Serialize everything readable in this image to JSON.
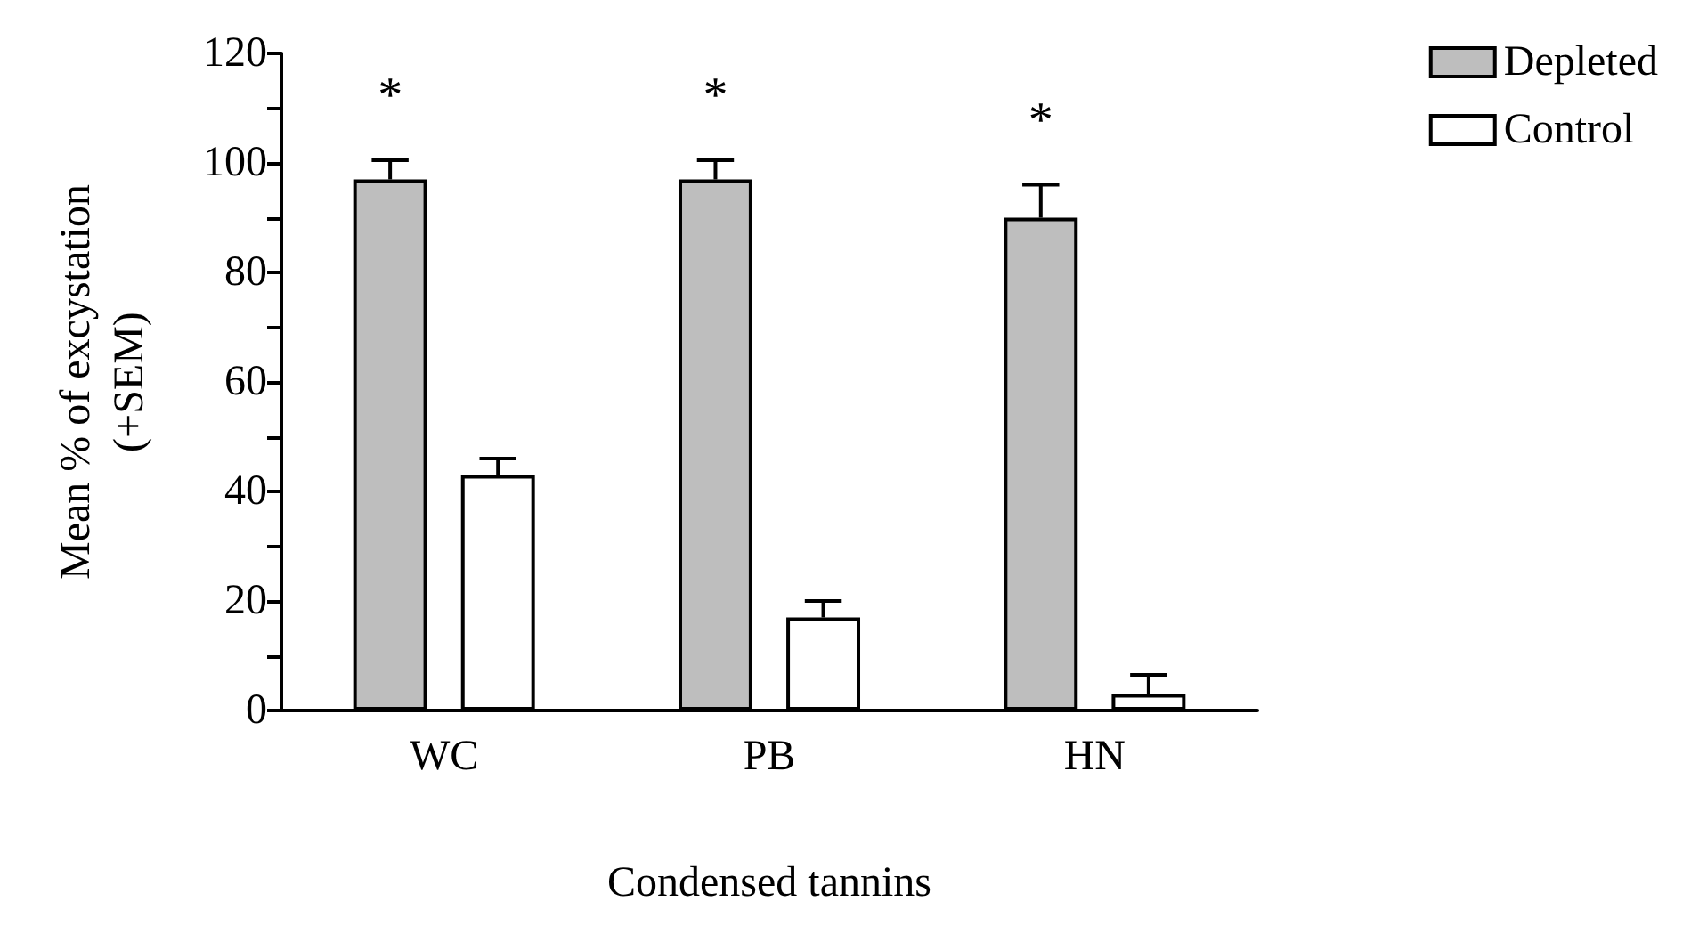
{
  "chart_data": {
    "type": "bar",
    "xlabel": "Condensed tannins",
    "ylabel": "Mean % of excystation\n(+SEM)",
    "categories": [
      "WC",
      "PB",
      "HN"
    ],
    "series": [
      {
        "name": "Depleted",
        "color": "#bebebe",
        "values": [
          97,
          97,
          90
        ],
        "errors": [
          3.5,
          3.5,
          6
        ]
      },
      {
        "name": "Control",
        "color": "#ffffff",
        "values": [
          43,
          17,
          3
        ],
        "errors": [
          3,
          3,
          3.5
        ]
      }
    ],
    "ylim": [
      0,
      120
    ],
    "yticks": [
      0,
      {
        "value": 10,
        "label": null
      },
      20,
      {
        "value": 30,
        "label": null
      },
      40,
      {
        "value": 50,
        "label": null
      },
      60,
      {
        "value": 70,
        "label": null
      },
      80,
      {
        "value": 90,
        "label": null
      },
      100,
      {
        "value": 110,
        "label": null
      },
      120
    ],
    "annotations": [
      "*",
      "*",
      "*"
    ],
    "legend": "top right",
    "grid": false
  }
}
